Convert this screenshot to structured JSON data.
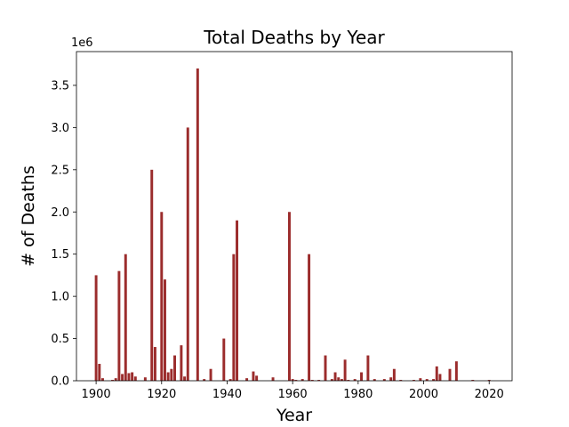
{
  "chart_data": {
    "type": "bar",
    "title": "Total Deaths by Year",
    "xlabel": "Year",
    "ylabel": "# of Deaths",
    "y_offset_label": "1e6",
    "xlim": [
      1894,
      2027
    ],
    "ylim": [
      0,
      3900000
    ],
    "x_ticks": [
      1900,
      1920,
      1940,
      1960,
      1980,
      2000,
      2020
    ],
    "y_ticks": [
      0,
      500000,
      1000000,
      1500000,
      2000000,
      2500000,
      3000000,
      3500000
    ],
    "y_tick_labels": [
      "0.0",
      "0.5",
      "1.0",
      "1.5",
      "2.0",
      "2.5",
      "3.0",
      "3.5"
    ],
    "bar_color": "#9b2c2c",
    "grid": false,
    "series": [
      {
        "x": [
          1900,
          1901,
          1902,
          1905,
          1906,
          1907,
          1908,
          1909,
          1910,
          1911,
          1912,
          1915,
          1917,
          1918,
          1920,
          1921,
          1922,
          1923,
          1924,
          1926,
          1927,
          1928,
          1931,
          1933,
          1935,
          1939,
          1941,
          1942,
          1943,
          1946,
          1948,
          1949,
          1954,
          1959,
          1960,
          1961,
          1963,
          1965,
          1966,
          1968,
          1970,
          1972,
          1973,
          1974,
          1975,
          1976,
          1977,
          1979,
          1981,
          1983,
          1985,
          1988,
          1990,
          1991,
          1993,
          1997,
          1999,
          2001,
          2003,
          2004,
          2005,
          2008,
          2010,
          2015,
          2020
        ],
        "values": [
          1250000,
          200000,
          30000,
          10000,
          30000,
          1300000,
          80000,
          1500000,
          90000,
          100000,
          50000,
          40000,
          2500000,
          400000,
          2000000,
          1200000,
          100000,
          140000,
          300000,
          420000,
          50000,
          3000000,
          3700000,
          20000,
          140000,
          500000,
          20000,
          1500000,
          1900000,
          30000,
          110000,
          60000,
          40000,
          2000000,
          20000,
          10000,
          20000,
          1500000,
          10000,
          10000,
          300000,
          20000,
          100000,
          40000,
          20000,
          250000,
          10000,
          20000,
          100000,
          300000,
          20000,
          20000,
          40000,
          140000,
          10000,
          10000,
          30000,
          20000,
          20000,
          170000,
          80000,
          140000,
          230000,
          10000,
          10000
        ]
      }
    ]
  }
}
